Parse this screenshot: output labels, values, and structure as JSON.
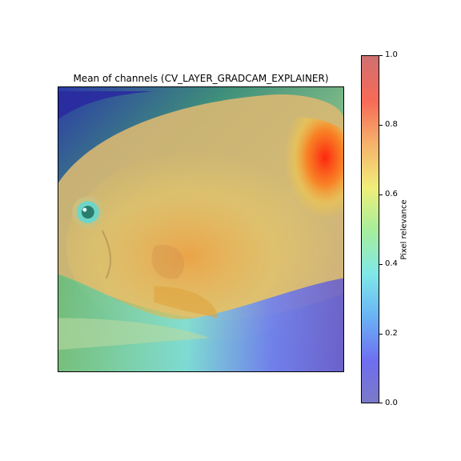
{
  "chart_data": {
    "type": "heatmap",
    "title": "Mean of channels (CV_LAYER_GRADCAM_EXPLAINER)",
    "colorbar": {
      "label": "Pixel relevance",
      "range": [
        0.0,
        1.0
      ],
      "ticks": [
        "0.0",
        "0.2",
        "0.4",
        "0.6",
        "0.8",
        "1.0"
      ],
      "colormap": "jet"
    },
    "image_description_note": "",
    "colors": {
      "low": "#6f6fe6",
      "mid": "#f0ee7a",
      "high": "#ff2a10"
    }
  }
}
